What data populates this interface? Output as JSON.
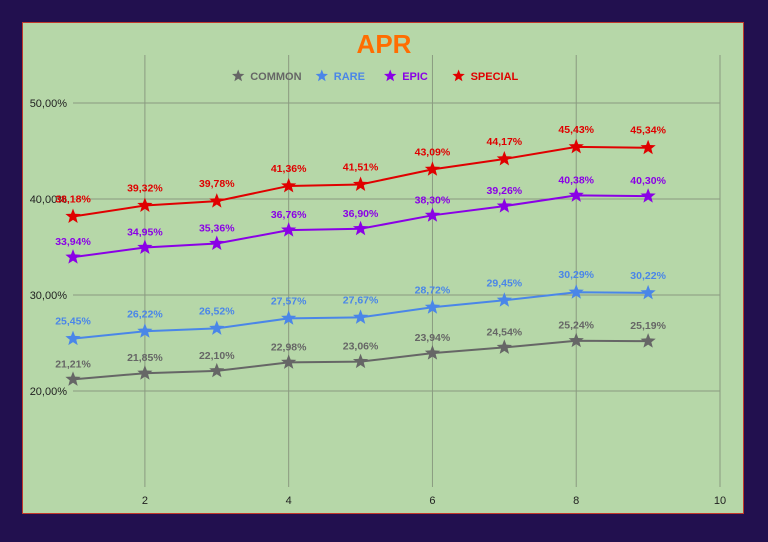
{
  "chart_data": {
    "type": "line",
    "title": "APR",
    "xlabel": "",
    "ylabel": "",
    "xlim": [
      1,
      10
    ],
    "ylim": [
      0.1,
      0.55
    ],
    "x_ticks": [
      {
        "v": 2,
        "label": "2"
      },
      {
        "v": 4,
        "label": "4"
      },
      {
        "v": 6,
        "label": "6"
      },
      {
        "v": 8,
        "label": "8"
      },
      {
        "v": 10,
        "label": "10"
      }
    ],
    "y_ticks": [
      {
        "v": 0.2,
        "label": "20,00%"
      },
      {
        "v": 0.3,
        "label": "30,00%"
      },
      {
        "v": 0.4,
        "label": "40,00%"
      },
      {
        "v": 0.5,
        "label": "50,00%"
      }
    ],
    "grid": true,
    "legend_position": "top-center",
    "x": [
      1,
      2,
      3,
      4,
      5,
      6,
      7,
      8,
      9
    ],
    "series": [
      {
        "name": "COMMON",
        "color": "#666666",
        "label_pos": "below",
        "values": [
          0.2121,
          0.2185,
          0.221,
          0.2298,
          0.2306,
          0.2394,
          0.2454,
          0.2524,
          0.2519
        ],
        "labels": [
          "21,21%",
          "21,85%",
          "22,10%",
          "22,98%",
          "23,06%",
          "23,94%",
          "24,54%",
          "25,24%",
          "25,19%"
        ]
      },
      {
        "name": "RARE",
        "color": "#4a86e8",
        "label_pos": "above",
        "values": [
          0.2545,
          0.2622,
          0.2652,
          0.2757,
          0.2767,
          0.2872,
          0.2945,
          0.3029,
          0.3022
        ],
        "labels": [
          "25,45%",
          "26,22%",
          "26,52%",
          "27,57%",
          "27,67%",
          "28,72%",
          "29,45%",
          "30,29%",
          "30,22%"
        ]
      },
      {
        "name": "EPIC",
        "color": "#8a00e6",
        "label_pos": "below",
        "values": [
          0.3394,
          0.3495,
          0.3536,
          0.3676,
          0.369,
          0.383,
          0.3926,
          0.4038,
          0.403
        ],
        "labels": [
          "33,94%",
          "34,95%",
          "35,36%",
          "36,76%",
          "36,90%",
          "38,30%",
          "39,26%",
          "40,38%",
          "40,30%"
        ]
      },
      {
        "name": "SPECIAL",
        "color": "#e00000",
        "label_pos": "above",
        "values": [
          0.3818,
          0.3932,
          0.3978,
          0.4136,
          0.4151,
          0.4309,
          0.4417,
          0.4543,
          0.4534
        ],
        "labels": [
          "38,18%",
          "39,32%",
          "39,78%",
          "41,36%",
          "41,51%",
          "43,09%",
          "44,17%",
          "45,43%",
          "45,34%"
        ]
      }
    ],
    "title_color": "#ff6d01"
  }
}
